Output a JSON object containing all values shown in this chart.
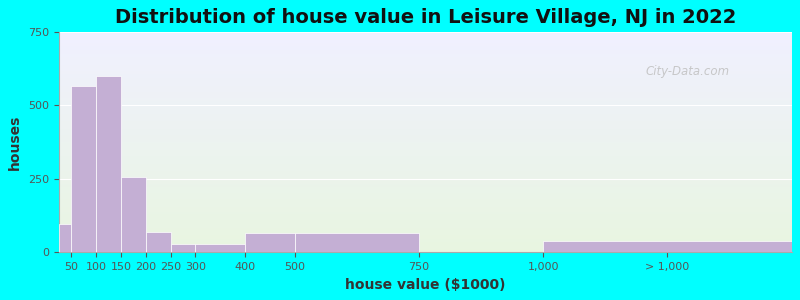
{
  "title": "Distribution of house value in Leisure Village, NJ in 2022",
  "xlabel": "house value ($1000)",
  "ylabel": "houses",
  "tick_labels": [
    "50",
    "100",
    "150",
    "200",
    "250",
    "300",
    "400",
    "500",
    "750",
    "1,000",
    "> 1,000"
  ],
  "tick_positions": [
    50,
    100,
    150,
    200,
    250,
    300,
    400,
    500,
    750,
    1000,
    1250
  ],
  "bar_left_edges": [
    25,
    50,
    100,
    150,
    200,
    250,
    300,
    400,
    500,
    750,
    1000
  ],
  "bar_right_edges": [
    50,
    100,
    150,
    200,
    250,
    300,
    400,
    500,
    750,
    1000,
    1500
  ],
  "bar_heights": [
    95,
    565,
    600,
    255,
    70,
    30,
    30,
    65,
    65,
    0,
    40
  ],
  "bar_color": "#c4afd4",
  "ylim": [
    0,
    750
  ],
  "xlim": [
    25,
    1500
  ],
  "yticks": [
    0,
    250,
    500,
    750
  ],
  "bg_color_top": "#f0f0ff",
  "bg_color_bottom": "#e8f5e0",
  "outer_bg": "#00ffff",
  "title_fontsize": 14,
  "axis_label_fontsize": 10,
  "watermark": "City-Data.com"
}
